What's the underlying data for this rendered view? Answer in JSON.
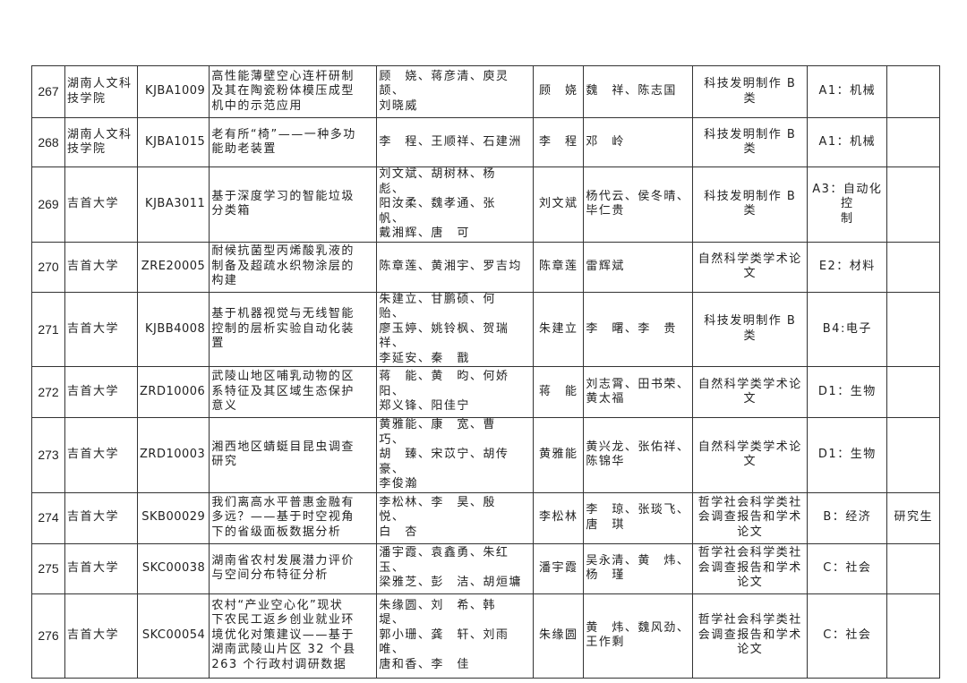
{
  "rows": [
    {
      "no": "267",
      "school": "湖南人文科\n技学院",
      "code": "KJBA1009",
      "title": "高性能薄壁空心连杆研制\n及其在陶瓷粉体模压成型\n机中的示范应用",
      "members": "顾　娆、蒋彦清、庾灵颉、\n刘晓威",
      "leader": "顾　娆",
      "advisors": "魏　祥、陈志国",
      "category": "科技发明制作 B 类",
      "subject": "A1：机械",
      "note": ""
    },
    {
      "no": "268",
      "school": "湖南人文科\n技学院",
      "code": "KJBA1015",
      "title": "老有所“椅”——一种多功\n能助老装置",
      "members": "李　程、王顺祥、石建洲",
      "leader": "李　程",
      "advisors": "邓　岭",
      "category": "科技发明制作 B 类",
      "subject": "A1：机械",
      "note": ""
    },
    {
      "no": "269",
      "school": "吉首大学",
      "code": "KJBA3011",
      "title": "基于深度学习的智能垃圾\n分类箱",
      "members": "刘文斌、胡树林、杨　彪、\n阳汝柔、魏孝通、张　帆、\n戴湘辉、唐　可",
      "leader": "刘文斌",
      "advisors": "杨代云、侯冬晴、\n毕仁贵",
      "category": "科技发明制作 B 类",
      "subject": "A3：自动化控\n制",
      "note": ""
    },
    {
      "no": "270",
      "school": "吉首大学",
      "code": "ZRE20005",
      "title": "耐候抗菌型丙烯酸乳液的\n制备及超疏水织物涂层的\n构建",
      "members": "陈章莲、黄湘宇、罗吉均",
      "leader": "陈章莲",
      "advisors": "雷辉斌",
      "category": "自然科学类学术论\n文",
      "subject": "E2：材料",
      "note": ""
    },
    {
      "no": "271",
      "school": "吉首大学",
      "code": "KJBB4008",
      "title": "基于机器视觉与无线智能\n控制的层析实验自动化装\n置",
      "members": "朱建立、甘鹏硕、何　贻、\n廖玉婷、姚铃枫、贺瑞祥、\n李延安、秦　戬",
      "leader": "朱建立",
      "advisors": "李　曙、李　贵",
      "category": "科技发明制作 B 类",
      "subject": "B4:电子",
      "note": ""
    },
    {
      "no": "272",
      "school": "吉首大学",
      "code": "ZRD10006",
      "title": "武陵山地区哺乳动物的区\n系特征及其区域生态保护\n意义",
      "members": "蒋　能、黄　昀、何娇阳、\n郑义锋、阳佳宁",
      "leader": "蒋　能",
      "advisors": "刘志霄、田书荣、\n黄太福",
      "category": "自然科学类学术论\n文",
      "subject": "D1：生物",
      "note": ""
    },
    {
      "no": "273",
      "school": "吉首大学",
      "code": "ZRD10003",
      "title": "湘西地区蜻蜓目昆虫调查\n研究",
      "members": "黄雅能、康　宽、曹　巧、\n胡　臻、宋苡宁、胡传豪、\n李俊瀚",
      "leader": "黄雅能",
      "advisors": "黄兴龙、张佑祥、\n陈锦华",
      "category": "自然科学类学术论\n文",
      "subject": "D1：生物",
      "note": ""
    },
    {
      "no": "274",
      "school": "吉首大学",
      "code": "SKB00029",
      "title": "我们离高水平普惠金融有\n多远？——基于时空视角\n下的省级面板数据分析",
      "members": "李松林、李　昊、殷　悦、\n白　杏",
      "leader": "李松林",
      "advisors": "李　琼、张琰飞、\n唐　琪",
      "category": "哲学社会科学类社\n会调查报告和学术\n论文",
      "subject": "B：经济",
      "note": "研究生"
    },
    {
      "no": "275",
      "school": "吉首大学",
      "code": "SKC00038",
      "title": "湖南省农村发展潜力评价\n与空间分布特征分析",
      "members": "潘宇霞、袁鑫勇、朱红玉、\n梁雅芝、彭　洁、胡烜墉",
      "leader": "潘宇霞",
      "advisors": "吴永清、黄　炜、\n杨　瑾",
      "category": "哲学社会科学类社\n会调查报告和学术\n论文",
      "subject": "C：社会",
      "note": ""
    },
    {
      "no": "276",
      "school": "吉首大学",
      "code": "SKC00054",
      "title": "农村“产业空心化”现状\n下农民工返乡创业就业环\n境优化对策建议——基于\n湖南武陵山片区 32 个县\n263 个行政村调研数据",
      "members": "朱缘圆、刘　希、韩　堤、\n郭小珊、龚　轩、刘雨唯、\n唐和香、李　佳",
      "leader": "朱缘圆",
      "advisors": "黄　炜、魏风劲、\n王作剩",
      "category": "哲学社会科学类社\n会调查报告和学术\n论文",
      "subject": "C：社会",
      "note": ""
    }
  ]
}
